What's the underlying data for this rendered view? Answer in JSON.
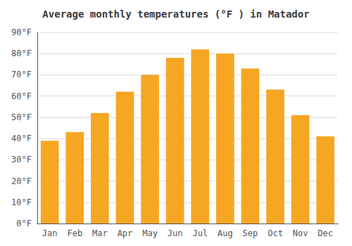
{
  "chart_data": {
    "type": "bar",
    "title": "Average monthly temperatures (°F ) in Matador",
    "categories": [
      "Jan",
      "Feb",
      "Mar",
      "Apr",
      "May",
      "Jun",
      "Jul",
      "Aug",
      "Sep",
      "Oct",
      "Nov",
      "Dec"
    ],
    "values": [
      39,
      43,
      52,
      62,
      70,
      78,
      82,
      80,
      73,
      63,
      51,
      41
    ],
    "color": "#F5A623",
    "ylim": [
      0,
      90
    ],
    "yticks": [
      {
        "value": 0,
        "label": "0°F"
      },
      {
        "value": 10,
        "label": "10°F"
      },
      {
        "value": 20,
        "label": "20°F"
      },
      {
        "value": 30,
        "label": "30°F"
      },
      {
        "value": 40,
        "label": "40°F"
      },
      {
        "value": 50,
        "label": "50°F"
      },
      {
        "value": 60,
        "label": "60°F"
      },
      {
        "value": 70,
        "label": "70°F"
      },
      {
        "value": 80,
        "label": "80°F"
      },
      {
        "value": 90,
        "label": "90°F"
      }
    ],
    "grid": true
  }
}
